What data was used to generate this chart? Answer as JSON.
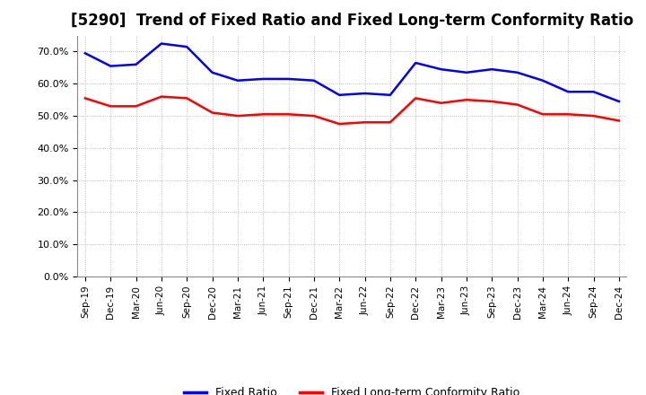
{
  "title": "[5290]  Trend of Fixed Ratio and Fixed Long-term Conformity Ratio",
  "x_labels": [
    "Sep-19",
    "Dec-19",
    "Mar-20",
    "Jun-20",
    "Sep-20",
    "Dec-20",
    "Mar-21",
    "Jun-21",
    "Sep-21",
    "Dec-21",
    "Mar-22",
    "Jun-22",
    "Sep-22",
    "Dec-22",
    "Mar-23",
    "Jun-23",
    "Sep-23",
    "Dec-23",
    "Mar-24",
    "Jun-24",
    "Sep-24",
    "Dec-24"
  ],
  "fixed_ratio": [
    69.5,
    65.5,
    66.0,
    72.5,
    71.5,
    63.5,
    61.0,
    61.5,
    61.5,
    61.0,
    56.5,
    57.0,
    56.5,
    66.5,
    64.5,
    63.5,
    64.5,
    63.5,
    61.0,
    57.5,
    57.5,
    54.5
  ],
  "fixed_lt_ratio": [
    55.5,
    53.0,
    53.0,
    56.0,
    55.5,
    51.0,
    50.0,
    50.5,
    50.5,
    50.0,
    47.5,
    48.0,
    48.0,
    55.5,
    54.0,
    55.0,
    54.5,
    53.5,
    50.5,
    50.5,
    50.0,
    48.5
  ],
  "fixed_ratio_color": "#0000FF",
  "fixed_lt_ratio_color": "#FF0000",
  "ylim": [
    0,
    75
  ],
  "yticks": [
    0.0,
    10.0,
    20.0,
    30.0,
    40.0,
    50.0,
    60.0,
    70.0
  ],
  "background_color": "#FFFFFF",
  "grid_color": "#AAAAAA",
  "title_fontsize": 12,
  "legend_labels": [
    "Fixed Ratio",
    "Fixed Long-term Conformity Ratio"
  ]
}
